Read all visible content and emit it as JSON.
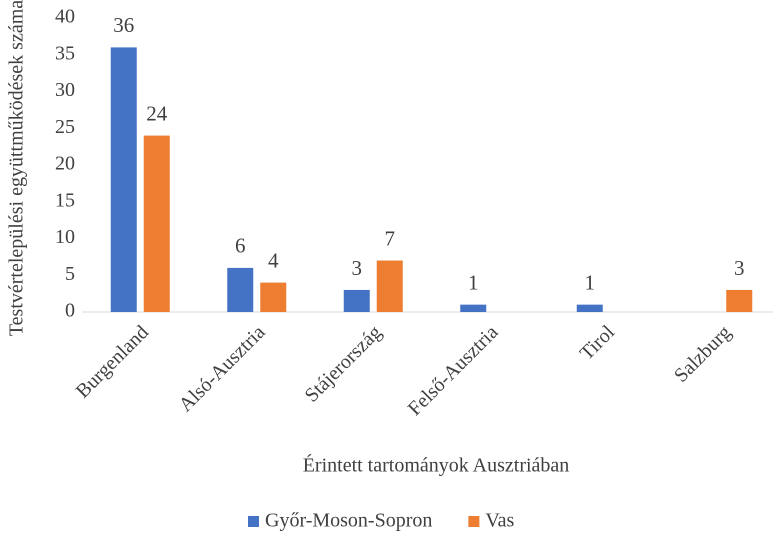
{
  "chart_data": {
    "type": "bar",
    "x_label": "Érintett tartományok Ausztriában",
    "y_label": "Testvértelepülési együttműködések száma",
    "categories": [
      "Burgenland",
      "Alsó-Ausztria",
      "Stájerország",
      "Felső-Ausztria",
      "Tirol",
      "Salzburg"
    ],
    "series": [
      {
        "name": "Győr-Moson-Sopron",
        "color": "#4472c4",
        "values": [
          36,
          6,
          3,
          1,
          1,
          null
        ]
      },
      {
        "name": "Vas",
        "color": "#ed7d31",
        "values": [
          24,
          4,
          7,
          null,
          null,
          3
        ]
      }
    ],
    "ylim": [
      0,
      40
    ],
    "yticks": [
      0,
      5,
      10,
      15,
      20,
      25,
      30,
      35,
      40
    ],
    "grid": false,
    "legend": "bottom"
  }
}
